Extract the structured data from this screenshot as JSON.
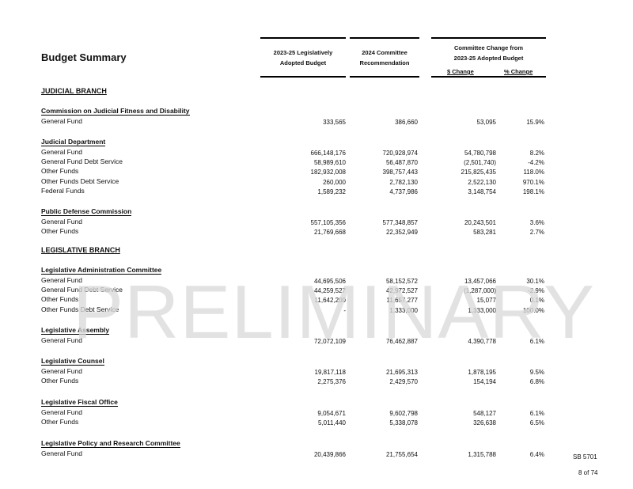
{
  "title": "Budget Summary",
  "headers": {
    "col1": [
      "2023-25 Legislatively",
      "Adopted Budget"
    ],
    "col2": [
      "2024 Committee",
      "Recommendation"
    ],
    "col3": [
      "Committee Change from",
      "2023-25 Adopted Budget"
    ],
    "dollar_change": "$ Change",
    "pct_change": "% Change"
  },
  "branches": [
    {
      "name": "JUDICIAL BRANCH",
      "agencies": [
        {
          "name": "Commission on Judicial Fitness and Disability",
          "rows": [
            {
              "label": "General Fund",
              "adopted": "333,565",
              "recommended": "386,660",
              "change": "53,095",
              "pct": "15.9%"
            }
          ]
        },
        {
          "name": "Judicial Department",
          "rows": [
            {
              "label": "General Fund",
              "adopted": "666,148,176",
              "recommended": "720,928,974",
              "change": "54,780,798",
              "pct": "8.2%"
            },
            {
              "label": "General Fund Debt Service",
              "adopted": "58,989,610",
              "recommended": "56,487,870",
              "change": "(2,501,740)",
              "pct": "-4.2%"
            },
            {
              "label": "Other Funds",
              "adopted": "182,932,008",
              "recommended": "398,757,443",
              "change": "215,825,435",
              "pct": "118.0%"
            },
            {
              "label": "Other Funds Debt Service",
              "adopted": "260,000",
              "recommended": "2,782,130",
              "change": "2,522,130",
              "pct": "970.1%"
            },
            {
              "label": "Federal Funds",
              "adopted": "1,589,232",
              "recommended": "4,737,986",
              "change": "3,148,754",
              "pct": "198.1%"
            }
          ]
        },
        {
          "name": "Public Defense Commission",
          "rows": [
            {
              "label": "General Fund",
              "adopted": "557,105,356",
              "recommended": "577,348,857",
              "change": "20,243,501",
              "pct": "3.6%"
            },
            {
              "label": "Other Funds",
              "adopted": "21,769,668",
              "recommended": "22,352,949",
              "change": "583,281",
              "pct": "2.7%"
            }
          ]
        }
      ]
    },
    {
      "name": "LEGISLATIVE BRANCH",
      "agencies": [
        {
          "name": "Legislative Administration Committee",
          "rows": [
            {
              "label": "General Fund",
              "adopted": "44,695,506",
              "recommended": "58,152,572",
              "change": "13,457,066",
              "pct": "30.1%"
            },
            {
              "label": "General Fund Debt Service",
              "adopted": "44,259,527",
              "recommended": "42,972,527",
              "change": "(1,287,000)",
              "pct": "-2.9%"
            },
            {
              "label": "Other Funds",
              "adopted": "11,642,200",
              "recommended": "11,657,277",
              "change": "15,077",
              "pct": "0.1%"
            },
            {
              "label": "Other Funds Debt Service",
              "adopted": "-",
              "recommended": "1,333,000",
              "change": "1,333,000",
              "pct": "100.0%"
            }
          ]
        },
        {
          "name": "Legislative Assembly",
          "rows": [
            {
              "label": "General Fund",
              "adopted": "72,072,109",
              "recommended": "76,462,887",
              "change": "4,390,778",
              "pct": "6.1%"
            }
          ]
        },
        {
          "name": "Legislative Counsel",
          "rows": [
            {
              "label": "General Fund",
              "adopted": "19,817,118",
              "recommended": "21,695,313",
              "change": "1,878,195",
              "pct": "9.5%"
            },
            {
              "label": "Other Funds",
              "adopted": "2,275,376",
              "recommended": "2,429,570",
              "change": "154,194",
              "pct": "6.8%"
            }
          ]
        },
        {
          "name": "Legislative Fiscal Office",
          "rows": [
            {
              "label": "General Fund",
              "adopted": "9,054,671",
              "recommended": "9,602,798",
              "change": "548,127",
              "pct": "6.1%"
            },
            {
              "label": "Other Funds",
              "adopted": "5,011,440",
              "recommended": "5,338,078",
              "change": "326,638",
              "pct": "6.5%"
            }
          ]
        },
        {
          "name": "Legislative Policy and Research Committee",
          "rows": [
            {
              "label": "General Fund",
              "adopted": "20,439,866",
              "recommended": "21,755,654",
              "change": "1,315,788",
              "pct": "6.4%"
            }
          ]
        }
      ]
    }
  ],
  "watermark": "PRELIMINARY",
  "footer": {
    "bill": "SB 5701",
    "page": "8 of 74"
  }
}
